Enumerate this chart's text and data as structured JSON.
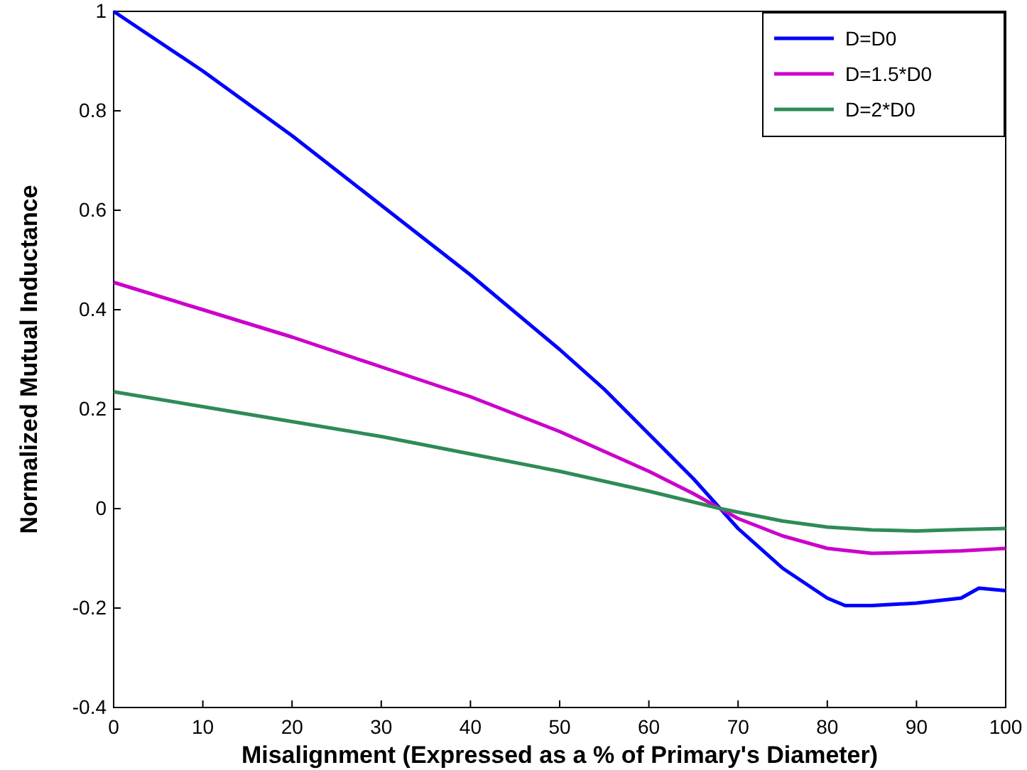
{
  "chart_data": {
    "type": "line",
    "xlabel": "Misalignment (Expressed as a % of Primary's Diameter)",
    "ylabel": "Normalized Mutual Inductance",
    "xlim": [
      0,
      100
    ],
    "ylim": [
      -0.4,
      1
    ],
    "xticks": [
      0,
      10,
      20,
      30,
      40,
      50,
      60,
      70,
      80,
      90,
      100
    ],
    "yticks": [
      -0.4,
      -0.2,
      0,
      0.2,
      0.4,
      0.6,
      0.8,
      1
    ],
    "grid": false,
    "legend": "top right",
    "line_style": "solid",
    "marker": "none",
    "series": [
      {
        "name": "D=D0",
        "color": "#0000ff",
        "x": [
          0,
          10,
          20,
          30,
          40,
          50,
          55,
          60,
          65,
          68,
          70,
          75,
          80,
          82,
          85,
          90,
          95,
          97,
          100
        ],
        "values": [
          1,
          0.88,
          0.75,
          0.61,
          0.47,
          0.32,
          0.24,
          0.15,
          0.06,
          0,
          -0.04,
          -0.12,
          -0.18,
          -0.195,
          -0.195,
          -0.19,
          -0.18,
          -0.16,
          -0.165
        ]
      },
      {
        "name": "D=1.5*D0",
        "color": "#cc00cc",
        "x": [
          0,
          10,
          20,
          30,
          40,
          50,
          60,
          65,
          68,
          70,
          75,
          80,
          85,
          90,
          95,
          100
        ],
        "values": [
          0.455,
          0.4,
          0.345,
          0.285,
          0.225,
          0.155,
          0.075,
          0.03,
          0,
          -0.02,
          -0.055,
          -0.08,
          -0.09,
          -0.088,
          -0.085,
          -0.08
        ]
      },
      {
        "name": "D=2*D0",
        "color": "#2e8b57",
        "x": [
          0,
          10,
          20,
          30,
          40,
          50,
          60,
          68,
          75,
          80,
          85,
          90,
          95,
          100
        ],
        "values": [
          0.235,
          0.205,
          0.175,
          0.145,
          0.11,
          0.075,
          0.035,
          0,
          -0.025,
          -0.037,
          -0.043,
          -0.045,
          -0.042,
          -0.04
        ]
      }
    ]
  }
}
